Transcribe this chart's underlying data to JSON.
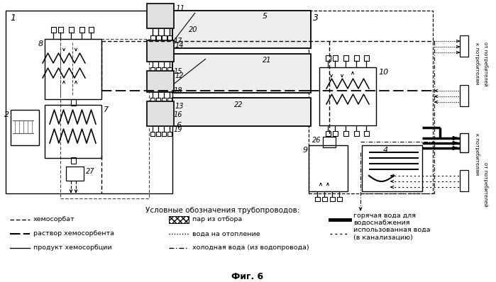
{
  "bg": "#ffffff",
  "title": "Фиг. 6",
  "legend_title": "Условные обозначения трубопроводов:",
  "legend_col0": [
    {
      "label": "хемосорбат",
      "style": "dash_short"
    },
    {
      "label": "раствор хемосорбента",
      "style": "dash_long"
    },
    {
      "label": "продукт хемосорбции",
      "style": "solid_thin"
    }
  ],
  "legend_col1": [
    {
      "label": "пар из отбора",
      "style": "hatch_box"
    },
    {
      "label": "вода на отопление",
      "style": "dotted"
    },
    {
      "label": "холодная вода (из водопровода)",
      "style": "dash_dot_sparse"
    }
  ],
  "legend_col2": [
    {
      "label": "горячая вода для\nводоснабжения",
      "style": "solid_thick"
    },
    {
      "label": "использованная вода\n(в канализацию)",
      "style": "dot_sparse"
    }
  ]
}
